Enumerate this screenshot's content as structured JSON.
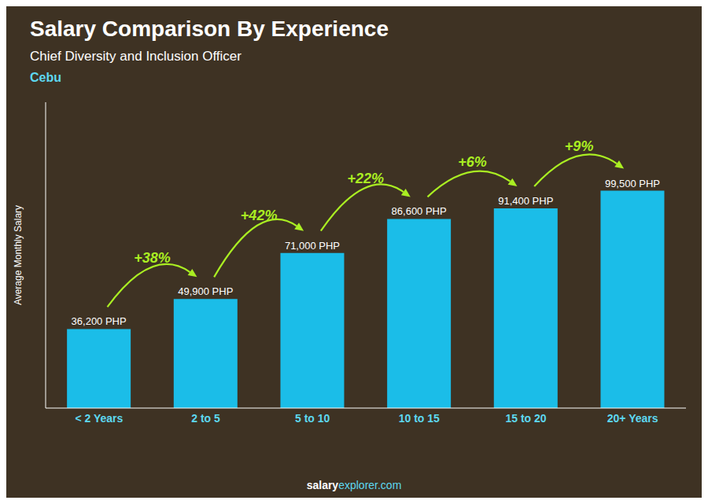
{
  "chart_data": {
    "type": "bar",
    "title": "Salary Comparison By Experience",
    "subtitle": "Chief Diversity and Inclusion Officer",
    "city": "Cebu",
    "categories": [
      "< 2 Years",
      "2 to 5",
      "5 to 10",
      "10 to 15",
      "15 to 20",
      "20+ Years"
    ],
    "values": [
      36200,
      49900,
      71000,
      86600,
      91400,
      99500
    ],
    "value_labels": [
      "36,200 PHP",
      "49,900 PHP",
      "71,000 PHP",
      "86,600 PHP",
      "91,400 PHP",
      "99,500 PHP"
    ],
    "data_labels": true,
    "annotations": [
      "+38%",
      "+42%",
      "+22%",
      "+6%",
      "+9%"
    ],
    "color": "#1BBDE8",
    "ylabel": "Average Monthly Salary",
    "ylim": [
      0,
      140000
    ],
    "tick_labels": "x",
    "footer": [
      "salary",
      "explorer.com"
    ]
  }
}
